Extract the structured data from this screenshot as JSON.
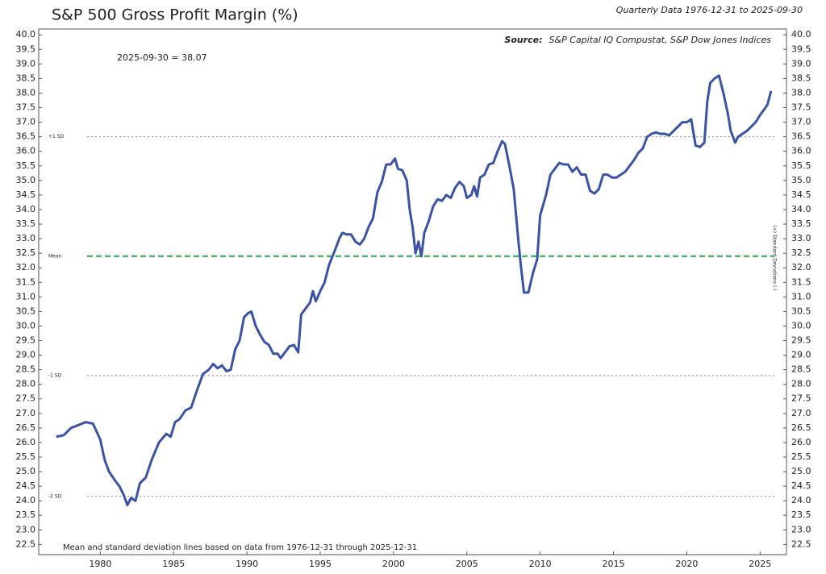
{
  "chart_data": {
    "type": "line",
    "title": "S&P 500 Gross Profit Margin (%)",
    "subtitle": "Quarterly Data 1976-12-31 to 2025-09-30",
    "source_label": "Source:",
    "source": "S&P Capital IQ Compustat, S&P Dow Jones Indices",
    "annotation": "2025-09-30 = 38.07",
    "footnote": "Mean and standard deviation lines based on data from 1976-12-31 through 2025-12-31",
    "y2_label": "(+) Standard Deviations (-)",
    "color": "#3a53a4",
    "xlim": [
      1975.8,
      2026.8
    ],
    "xticks": [
      1980,
      1985,
      1990,
      1995,
      2000,
      2005,
      2010,
      2015,
      2020,
      2025
    ],
    "ylim": [
      22.15,
      40.2
    ],
    "yticks": [
      22.5,
      {
        "value": 23,
        "label": "23.0"
      },
      23.5,
      {
        "value": 24,
        "label": "24.0"
      },
      24.5,
      {
        "value": 25,
        "label": "25.0"
      },
      25.5,
      {
        "value": 26,
        "label": "26.0"
      },
      26.5,
      {
        "value": 27,
        "label": "27.0"
      },
      27.5,
      {
        "value": 28,
        "label": "28.0"
      },
      28.5,
      {
        "value": 29,
        "label": "29.0"
      },
      29.5,
      {
        "value": 30,
        "label": "30.0"
      },
      30.5,
      {
        "value": 31,
        "label": "31.0"
      },
      31.5,
      {
        "value": 32,
        "label": "32.0"
      },
      32.5,
      {
        "value": 33,
        "label": "33.0"
      },
      33.5,
      {
        "value": 34,
        "label": "34.0"
      },
      34.5,
      {
        "value": 35,
        "label": "35.0"
      },
      35.5,
      {
        "value": 36,
        "label": "36.0"
      },
      36.5,
      {
        "value": 37,
        "label": "37.0"
      },
      37.5,
      {
        "value": 38,
        "label": "38.0"
      },
      38.5,
      {
        "value": 39,
        "label": "39.0"
      },
      39.5,
      {
        "value": 40,
        "label": "40.0"
      }
    ],
    "reference_lines": [
      {
        "label": "+1 SD",
        "value": 36.5,
        "color": "#888888",
        "dash": "dotted"
      },
      {
        "label": "Mean",
        "value": 32.4,
        "color": "#2aa64a",
        "dash": "dashed"
      },
      {
        "label": "-1 SD",
        "value": 28.3,
        "color": "#888888",
        "dash": "dotted"
      },
      {
        "label": "-2 SD",
        "value": 24.15,
        "color": "#888888",
        "dash": "dotted"
      }
    ],
    "x": [
      1977.0,
      1977.5,
      1978.0,
      1978.5,
      1979.0,
      1979.5,
      1980.0,
      1980.3,
      1980.6,
      1981.0,
      1981.3,
      1981.6,
      1981.85,
      1982.1,
      1982.4,
      1982.7,
      1983.1,
      1983.5,
      1984.0,
      1984.5,
      1984.8,
      1985.1,
      1985.4,
      1985.8,
      1986.2,
      1986.6,
      1987.0,
      1987.4,
      1987.7,
      1988.0,
      1988.3,
      1988.6,
      1988.9,
      1989.2,
      1989.5,
      1989.8,
      1990.1,
      1990.3,
      1990.6,
      1990.9,
      1991.2,
      1991.5,
      1991.8,
      1992.1,
      1992.3,
      1992.6,
      1992.9,
      1993.2,
      1993.5,
      1993.7,
      1994.0,
      1994.3,
      1994.5,
      1994.7,
      1995.0,
      1995.3,
      1995.6,
      1996.0,
      1996.3,
      1996.5,
      1996.8,
      1997.1,
      1997.4,
      1997.7,
      1998.0,
      1998.3,
      1998.6,
      1998.9,
      1999.2,
      1999.5,
      1999.8,
      2000.1,
      2000.3,
      2000.6,
      2000.9,
      2001.1,
      2001.3,
      2001.5,
      2001.7,
      2001.9,
      2002.1,
      2002.4,
      2002.7,
      2003.0,
      2003.3,
      2003.6,
      2003.9,
      2004.2,
      2004.5,
      2004.8,
      2005.0,
      2005.3,
      2005.5,
      2005.7,
      2005.9,
      2006.2,
      2006.5,
      2006.8,
      2007.1,
      2007.4,
      2007.6,
      2007.9,
      2008.2,
      2008.5,
      2008.7,
      2008.9,
      2009.2,
      2009.5,
      2009.8,
      2010.0,
      2010.4,
      2010.7,
      2011.0,
      2011.3,
      2011.6,
      2011.9,
      2012.2,
      2012.5,
      2012.8,
      2013.1,
      2013.4,
      2013.7,
      2014.0,
      2014.3,
      2014.6,
      2014.9,
      2015.2,
      2015.5,
      2015.8,
      2016.1,
      2016.4,
      2016.7,
      2017.0,
      2017.3,
      2017.6,
      2017.9,
      2018.2,
      2018.5,
      2018.8,
      2019.1,
      2019.4,
      2019.7,
      2020.0,
      2020.3,
      2020.6,
      2020.9,
      2021.2,
      2021.4,
      2021.6,
      2021.9,
      2022.2,
      2022.5,
      2022.8,
      2023.0,
      2023.3,
      2023.5,
      2023.8,
      2024.1,
      2024.4,
      2024.7,
      2025.0,
      2025.3,
      2025.5,
      2025.75
    ],
    "values": [
      26.2,
      26.25,
      26.5,
      26.6,
      26.7,
      26.65,
      26.1,
      25.4,
      25.0,
      24.7,
      24.5,
      24.2,
      23.85,
      24.1,
      24.0,
      24.6,
      24.8,
      25.4,
      26.0,
      26.3,
      26.2,
      26.7,
      26.8,
      27.1,
      27.2,
      27.8,
      28.35,
      28.5,
      28.7,
      28.55,
      28.65,
      28.45,
      28.5,
      29.2,
      29.5,
      30.3,
      30.45,
      30.5,
      30.0,
      29.7,
      29.45,
      29.35,
      29.05,
      29.05,
      28.9,
      29.1,
      29.3,
      29.35,
      29.1,
      30.4,
      30.6,
      30.8,
      31.2,
      30.85,
      31.2,
      31.5,
      32.1,
      32.6,
      33.0,
      33.2,
      33.15,
      33.15,
      32.9,
      32.8,
      33.0,
      33.4,
      33.7,
      34.6,
      34.95,
      35.55,
      35.55,
      35.75,
      35.4,
      35.35,
      35.0,
      34.0,
      33.4,
      32.5,
      32.9,
      32.4,
      33.2,
      33.6,
      34.1,
      34.35,
      34.3,
      34.5,
      34.4,
      34.75,
      34.95,
      34.8,
      34.4,
      34.5,
      34.8,
      34.45,
      35.1,
      35.2,
      35.55,
      35.6,
      36.0,
      36.35,
      36.25,
      35.5,
      34.7,
      33.0,
      32.0,
      31.15,
      31.15,
      31.8,
      32.3,
      33.8,
      34.5,
      35.2,
      35.4,
      35.6,
      35.55,
      35.55,
      35.3,
      35.45,
      35.2,
      35.2,
      34.65,
      34.55,
      34.7,
      35.2,
      35.2,
      35.1,
      35.1,
      35.2,
      35.3,
      35.5,
      35.7,
      35.95,
      36.1,
      36.5,
      36.6,
      36.65,
      36.6,
      36.6,
      36.55,
      36.7,
      36.85,
      37.0,
      37.0,
      37.1,
      36.2,
      36.15,
      36.3,
      37.7,
      38.35,
      38.5,
      38.6,
      38.0,
      37.3,
      36.7,
      36.3,
      36.5,
      36.6,
      36.7,
      36.85,
      37.0,
      37.25,
      37.45,
      37.6,
      38.07
    ]
  }
}
